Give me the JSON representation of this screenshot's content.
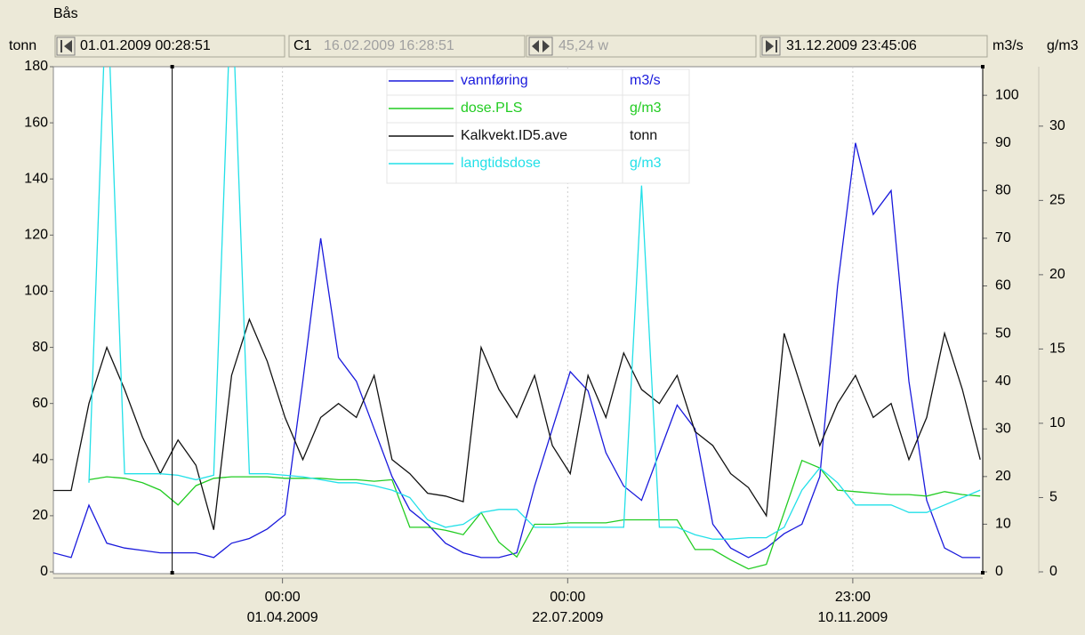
{
  "window_title": "Bås",
  "toolbar": {
    "start": "01.01.2009 00:28:51",
    "cursor_label": "C1",
    "cursor_time": "16.02.2009 16:28:51",
    "span": "45,24 w",
    "end": "31.12.2009 23:45:06"
  },
  "chart_data": {
    "type": "line",
    "grid": "x",
    "xlim": [
      "2009-01-01T00:28:51",
      "2009-12-31T23:45:06"
    ],
    "xticks": [
      {
        "value": "2009-04-01T00:00:00",
        "label": [
          "00:00",
          "01.04.2009"
        ]
      },
      {
        "value": "2009-07-22T00:00:00",
        "label": [
          "00:00",
          "22.07.2009"
        ]
      },
      {
        "value": "2009-11-10T23:00:00",
        "label": [
          "23:00",
          "10.11.2009"
        ]
      }
    ],
    "cursors": [
      "2009-02-16T16:28:51",
      "2009-12-31T23:45:06"
    ],
    "ylabel": "tonn",
    "ylim": [
      0,
      180
    ],
    "yticks": [
      0,
      20,
      40,
      60,
      80,
      100,
      120,
      140,
      160,
      180
    ],
    "y2label": "m3/s",
    "y2lim": [
      0,
      106
    ],
    "y2ticks": [
      0,
      10,
      20,
      30,
      40,
      50,
      60,
      70,
      80,
      90,
      100
    ],
    "y3label": "g/m3",
    "y3lim": [
      0,
      34
    ],
    "y3ticks": [
      0,
      5,
      10,
      15,
      20,
      25,
      30
    ],
    "x": [
      "2009-01-01",
      "2009-01-08",
      "2009-01-15",
      "2009-01-22",
      "2009-01-29",
      "2009-02-05",
      "2009-02-12",
      "2009-02-19",
      "2009-02-26",
      "2009-03-05",
      "2009-03-12",
      "2009-03-19",
      "2009-03-26",
      "2009-04-02",
      "2009-04-09",
      "2009-04-16",
      "2009-04-23",
      "2009-04-30",
      "2009-05-07",
      "2009-05-14",
      "2009-05-21",
      "2009-05-28",
      "2009-06-04",
      "2009-06-11",
      "2009-06-18",
      "2009-06-25",
      "2009-07-02",
      "2009-07-09",
      "2009-07-16",
      "2009-07-23",
      "2009-07-30",
      "2009-08-06",
      "2009-08-13",
      "2009-08-20",
      "2009-08-27",
      "2009-09-03",
      "2009-09-10",
      "2009-09-17",
      "2009-09-24",
      "2009-10-01",
      "2009-10-08",
      "2009-10-15",
      "2009-10-22",
      "2009-10-29",
      "2009-11-05",
      "2009-11-12",
      "2009-11-19",
      "2009-11-26",
      "2009-12-03",
      "2009-12-10",
      "2009-12-17",
      "2009-12-24",
      "2009-12-31"
    ],
    "series": [
      {
        "name": "vannføring",
        "unit": "m3/s",
        "axis": "y2",
        "color": "#1a1adc",
        "values": [
          4,
          3,
          14,
          6,
          5,
          4.5,
          4,
          4,
          4,
          3,
          6,
          7,
          9,
          12,
          40,
          70,
          45,
          40,
          30,
          20,
          13,
          10,
          6,
          4,
          3,
          3,
          4,
          18,
          30,
          42,
          38,
          25,
          18,
          15,
          25,
          35,
          30,
          10,
          5,
          3,
          5,
          8,
          10,
          20,
          60,
          90,
          75,
          80,
          40,
          15,
          5,
          3,
          3
        ]
      },
      {
        "name": "dose.PLS",
        "unit": "g/m3",
        "axis": "y3",
        "color": "#22cc22",
        "values": [
          null,
          null,
          6.2,
          6.4,
          6.3,
          6.0,
          5.5,
          4.5,
          5.8,
          6.3,
          6.4,
          6.4,
          6.4,
          6.3,
          6.3,
          6.3,
          6.2,
          6.2,
          6.1,
          6.2,
          3.0,
          3.0,
          2.8,
          2.5,
          4.0,
          2.0,
          1.0,
          3.2,
          3.2,
          3.3,
          3.3,
          3.3,
          3.5,
          3.5,
          3.5,
          3.5,
          1.5,
          1.5,
          0.8,
          0.2,
          0.5,
          4.0,
          7.5,
          7.0,
          5.5,
          5.4,
          5.3,
          5.2,
          5.2,
          5.1,
          5.4,
          5.2,
          5.1
        ]
      },
      {
        "name": "Kalkvekt.ID5.ave",
        "unit": "tonn",
        "axis": "y",
        "color": "#111111",
        "values": [
          29,
          29,
          60,
          80,
          65,
          48,
          35,
          47,
          38,
          15,
          70,
          90,
          75,
          55,
          40,
          55,
          60,
          55,
          70,
          40,
          35,
          28,
          27,
          25,
          80,
          65,
          55,
          70,
          45,
          35,
          70,
          55,
          78,
          65,
          60,
          70,
          50,
          45,
          35,
          30,
          20,
          85,
          65,
          45,
          60,
          70,
          55,
          60,
          40,
          55,
          85,
          65,
          40
        ]
      },
      {
        "name": "langtidsdose",
        "unit": "g/m3",
        "axis": "y3",
        "color": "#22e0e8",
        "values": [
          null,
          null,
          6.0,
          40,
          6.6,
          6.6,
          6.6,
          6.5,
          6.2,
          6.5,
          40,
          6.6,
          6.6,
          6.5,
          6.4,
          6.2,
          6.0,
          6.0,
          5.8,
          5.5,
          5.0,
          3.5,
          3.0,
          3.2,
          4.0,
          4.2,
          4.2,
          3.0,
          3.0,
          3.0,
          3.0,
          3.0,
          3.0,
          26,
          3.0,
          3.0,
          2.5,
          2.2,
          2.2,
          2.3,
          2.3,
          3.0,
          5.5,
          7.0,
          6.0,
          4.5,
          4.5,
          4.5,
          4.0,
          4.0,
          4.5,
          5.0,
          5.5
        ]
      }
    ]
  }
}
